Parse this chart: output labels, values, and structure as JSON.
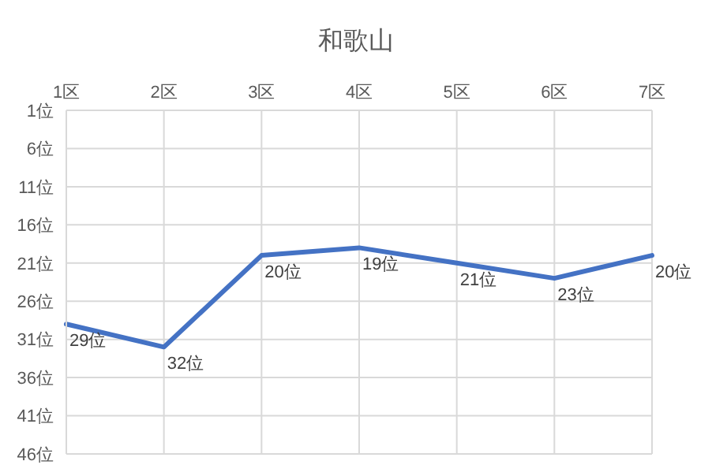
{
  "chart_data": {
    "type": "line",
    "title": "和歌山",
    "categories": [
      "1区",
      "2区",
      "3区",
      "4区",
      "5区",
      "6区",
      "7区"
    ],
    "series": [
      {
        "color": "#4472c4",
        "values": [
          29,
          32,
          20,
          19,
          21,
          23,
          20
        ],
        "value_labels": [
          "29位",
          "32位",
          "20位",
          "19位",
          "21位",
          "23位",
          "20位"
        ]
      }
    ],
    "ylim": [
      46,
      1
    ],
    "yticks": [
      {
        "value": 1,
        "label": "1位"
      },
      {
        "value": 6,
        "label": "6位"
      },
      {
        "value": 11,
        "label": "11位"
      },
      {
        "value": 16,
        "label": "16位"
      },
      {
        "value": 21,
        "label": "21位"
      },
      {
        "value": 26,
        "label": "26位"
      },
      {
        "value": 31,
        "label": "31位"
      },
      {
        "value": 36,
        "label": "36位"
      },
      {
        "value": 41,
        "label": "41位"
      },
      {
        "value": 46,
        "label": "46位"
      }
    ],
    "grid": true,
    "legend": false,
    "marker": "none",
    "line_style": "solid"
  }
}
